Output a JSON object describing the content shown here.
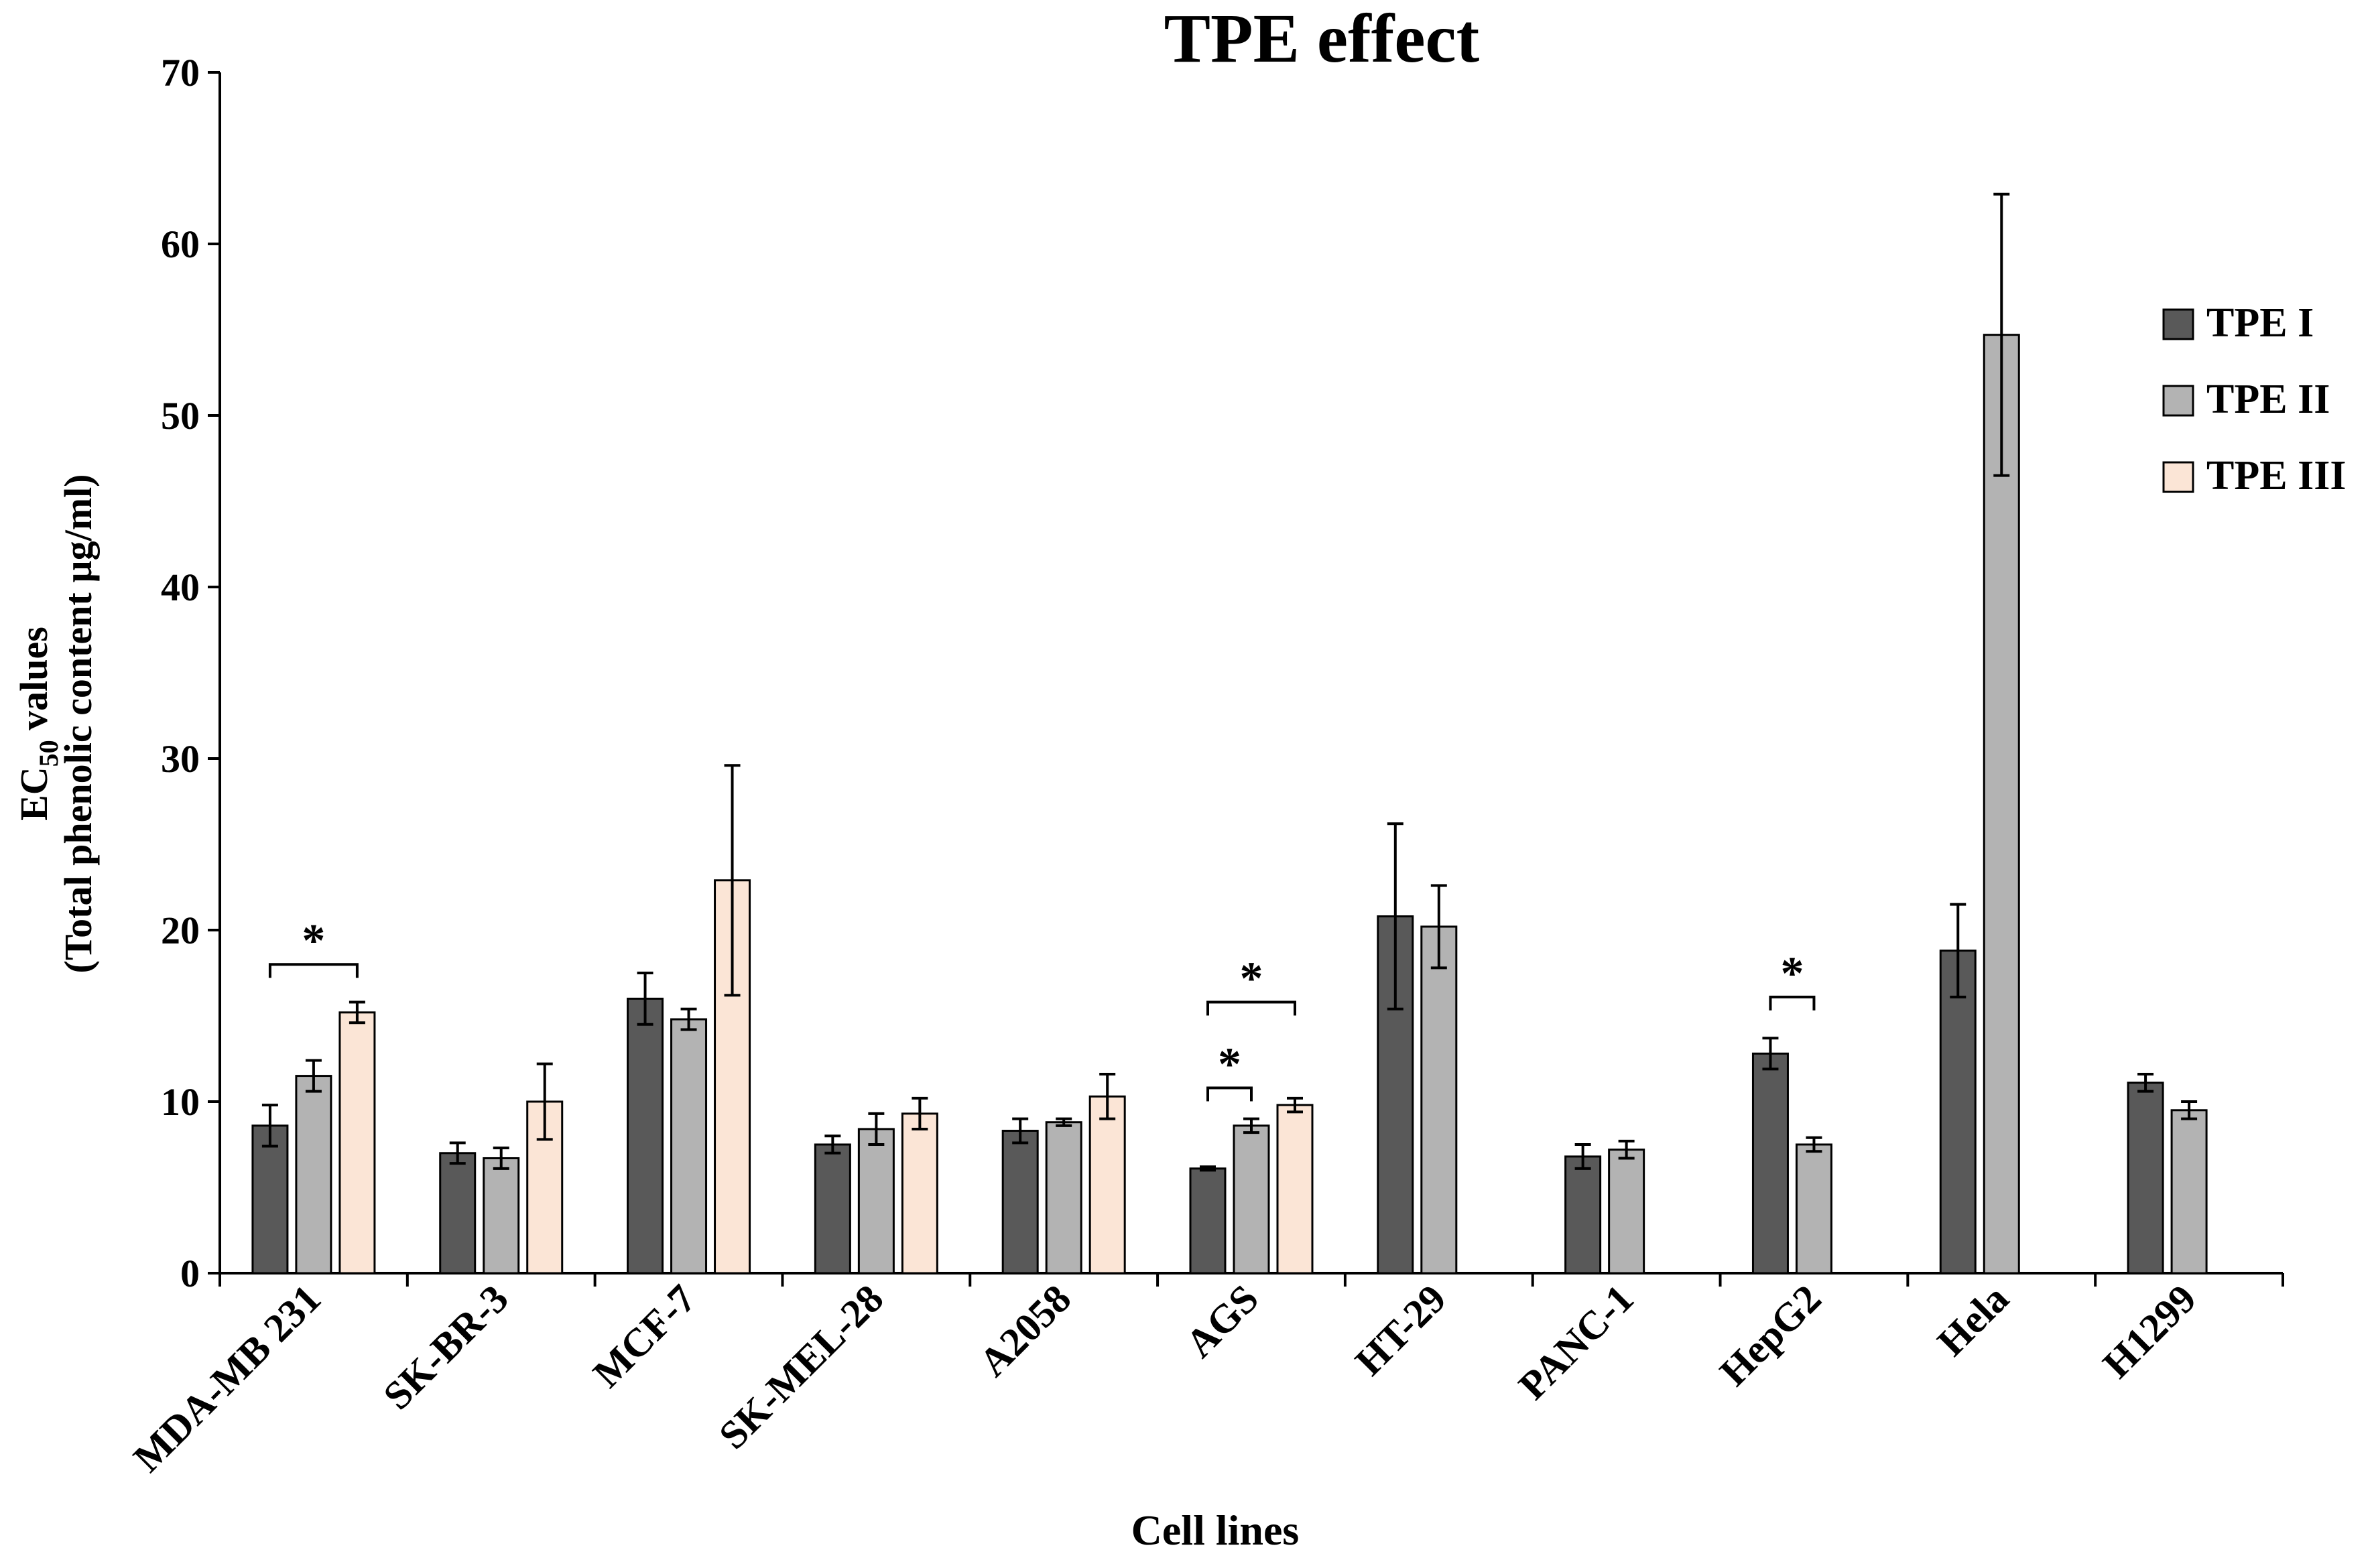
{
  "chart_data": {
    "type": "bar",
    "title": "TPE effect",
    "xlabel": "Cell lines",
    "ylabel_line1_main": "EC",
    "ylabel_line1_sub": "50",
    "ylabel_line1_rest": " values",
    "ylabel_line2": "(Total phenolic content µg/ml)",
    "ylim": [
      0,
      70
    ],
    "yticks": [
      0,
      10,
      20,
      30,
      40,
      50,
      60,
      70
    ],
    "categories": [
      "MDA-MB 231",
      "SK-BR-3",
      "MCF-7",
      "SK-MEL-28",
      "A2058",
      "AGS",
      "HT-29",
      "PANC-1",
      "HepG2",
      "Hela",
      "H1299"
    ],
    "series": [
      {
        "name": "TPE I",
        "color": "#595959",
        "values": [
          8.6,
          7.0,
          16.0,
          7.5,
          8.3,
          6.1,
          20.8,
          6.8,
          12.8,
          18.8,
          11.1
        ],
        "errors": [
          1.2,
          0.6,
          1.5,
          0.5,
          0.7,
          0.1,
          5.4,
          0.7,
          0.9,
          2.7,
          0.5
        ]
      },
      {
        "name": "TPE II",
        "color": "#b3b3b3",
        "values": [
          11.5,
          6.7,
          14.8,
          8.4,
          8.8,
          8.6,
          20.2,
          7.2,
          7.5,
          54.7,
          9.5
        ],
        "errors": [
          0.9,
          0.6,
          0.6,
          0.9,
          0.2,
          0.4,
          2.4,
          0.5,
          0.4,
          8.2,
          0.5
        ]
      },
      {
        "name": "TPE III",
        "color": "#fbe5d6",
        "values": [
          15.2,
          10.0,
          22.9,
          9.3,
          10.3,
          9.8,
          null,
          null,
          null,
          null,
          null
        ],
        "errors": [
          0.6,
          2.2,
          6.7,
          0.9,
          1.3,
          0.4,
          null,
          null,
          null,
          null,
          null
        ]
      }
    ],
    "significance": [
      {
        "category_index": 0,
        "from_series": 0,
        "to_series": 2,
        "label": "*",
        "at_value": 18.0
      },
      {
        "category_index": 5,
        "from_series": 0,
        "to_series": 1,
        "label": "*",
        "at_value": 10.8
      },
      {
        "category_index": 5,
        "from_series": 0,
        "to_series": 2,
        "label": "*",
        "at_value": 15.8
      },
      {
        "category_index": 8,
        "from_series": 0,
        "to_series": 1,
        "label": "*",
        "at_value": 16.1
      }
    ],
    "legend_position": "right"
  }
}
